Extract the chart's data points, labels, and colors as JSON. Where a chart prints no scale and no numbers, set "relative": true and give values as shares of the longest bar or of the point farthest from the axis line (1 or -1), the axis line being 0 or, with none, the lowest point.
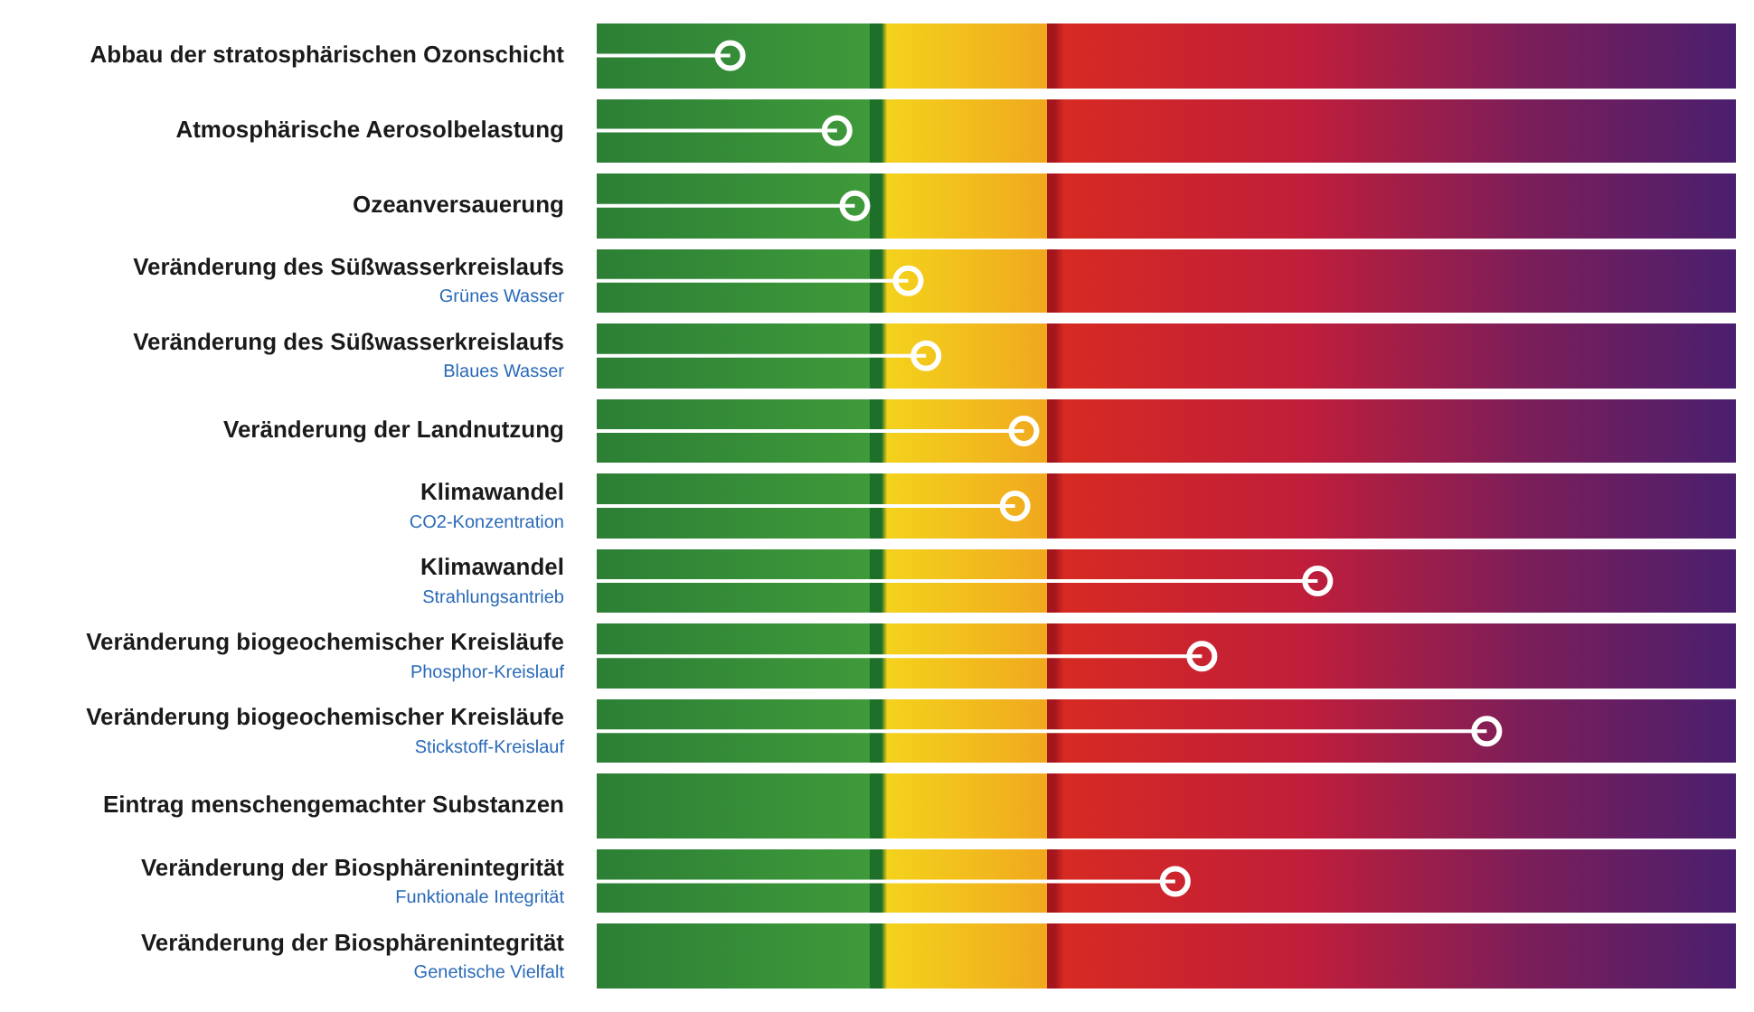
{
  "chart_data": {
    "type": "lollipop",
    "orientation": "horizontal",
    "relative": true,
    "categories": [
      "Abbau der stratosphärischen Ozonschicht",
      "Atmosphärische Aerosolbelastung",
      "Ozeanversauerung",
      "Veränderung des Süßwasserkreislaufs\nGrünes Wasser",
      "Veränderung des Süßwasserkreislaufs\nBlaues Wasser",
      "Veränderung der Landnutzung",
      "Klimawandel\nCO2-Konzentration",
      "Klimawandel\nStrahlungsantrieb",
      "Veränderung biogeochemischer Kreisläufe\nPhosphor-Kreislauf",
      "Veränderung biogeochemischer Kreisläufe\nStickstoff-Kreislauf",
      "Eintrag menschengemachter Substanzen",
      "Veränderung der Biosphärenintegrität\nFunktionale Integrität",
      "Veränderung der Biosphärenintegrität\nGenetische Vielfalt"
    ],
    "values": [
      0.15,
      0.27,
      0.29,
      0.35,
      0.37,
      0.48,
      0.47,
      0.81,
      0.68,
      1,
      null,
      0.65,
      null
    ],
    "color": "#ffffff",
    "marker": "circle",
    "legend": false
  }
}
